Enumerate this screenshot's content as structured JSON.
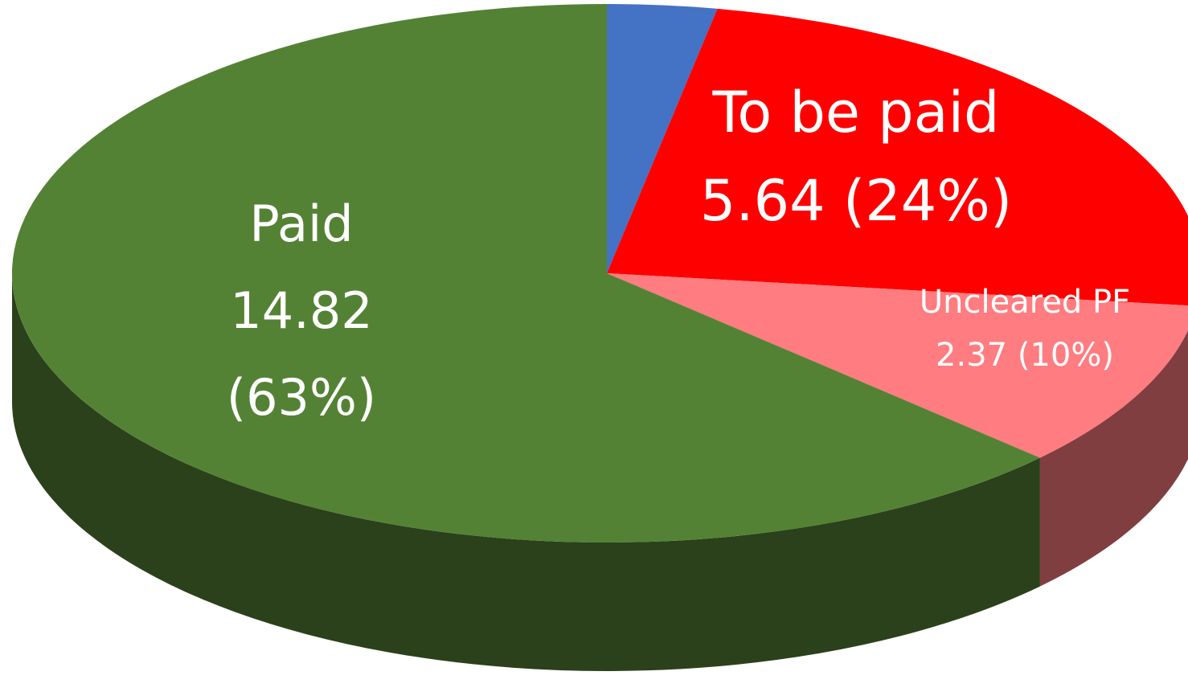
{
  "chart_data": {
    "type": "pie",
    "categories": [
      null,
      "To be paid",
      "Uncleared PF",
      "Paid"
    ],
    "values": [
      0.7,
      5.64,
      2.37,
      14.82
    ],
    "value_labels": [
      null,
      "5.64 (24%)",
      "2.37 (10%)",
      [
        "14.82",
        "(63%)"
      ]
    ],
    "colors": [
      "#4472c4",
      "#ff0000",
      "#ff7c80",
      "#548235"
    ],
    "three_d": true
  }
}
